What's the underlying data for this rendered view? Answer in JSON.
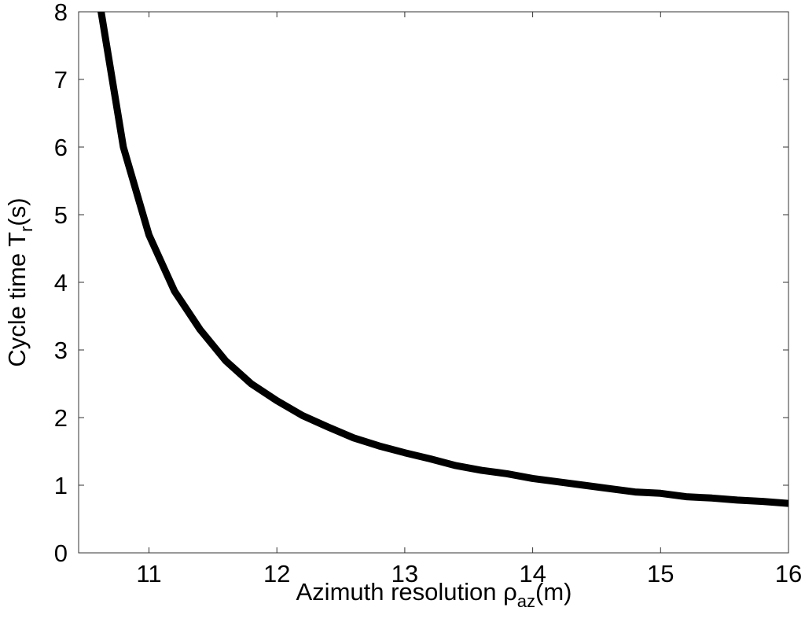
{
  "chart_data": {
    "type": "line",
    "title": "",
    "xlabel": {
      "prefix": "Azimuth resolution ",
      "symbol": "ρ",
      "subscript": "az",
      "suffix": "(m)"
    },
    "ylabel": {
      "prefix": "Cycle time T",
      "subscript": "r",
      "suffix": "(s)"
    },
    "xlim": [
      10.45,
      16
    ],
    "ylim": [
      0,
      8
    ],
    "xticks": [
      11,
      12,
      13,
      14,
      15,
      16
    ],
    "yticks": [
      0,
      1,
      2,
      3,
      4,
      5,
      6,
      7,
      8
    ],
    "grid": false,
    "legend": "none",
    "series": [
      {
        "color": "#000000",
        "x": [
          10.6,
          10.8,
          11.0,
          11.2,
          11.4,
          11.6,
          11.8,
          12.0,
          12.2,
          12.4,
          12.6,
          12.8,
          13.0,
          13.2,
          13.4,
          13.6,
          13.8,
          14.0,
          14.2,
          14.4,
          14.6,
          14.8,
          15.0,
          15.2,
          15.4,
          15.6,
          15.8,
          16.0
        ],
        "y": [
          8.3,
          6.0,
          4.7,
          3.87,
          3.3,
          2.84,
          2.5,
          2.25,
          2.03,
          1.86,
          1.7,
          1.58,
          1.48,
          1.39,
          1.29,
          1.22,
          1.17,
          1.1,
          1.05,
          1.0,
          0.95,
          0.9,
          0.88,
          0.83,
          0.81,
          0.78,
          0.76,
          0.73
        ]
      }
    ]
  }
}
